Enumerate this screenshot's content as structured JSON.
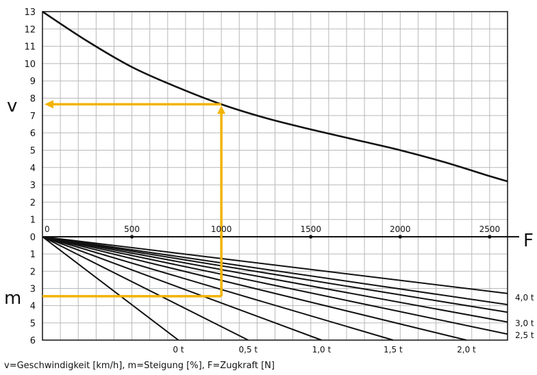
{
  "chart_data": {
    "type": "line",
    "title": "",
    "caption": "v=Geschwindigkeit [km/h], m=Steigung [%], F=Zugkraft [N]",
    "axis_label_v": "v",
    "axis_label_f": "F",
    "axis_label_m": "m",
    "f_range": [
      0,
      2600
    ],
    "v_range": [
      0,
      13
    ],
    "m_range": [
      0,
      6
    ],
    "f_ticks": [
      "0",
      "500",
      "1000",
      "1500",
      "2000",
      "2500"
    ],
    "v_ticks": [
      "0",
      "1",
      "2",
      "3",
      "4",
      "5",
      "6",
      "7",
      "8",
      "9",
      "10",
      "11",
      "12",
      "13"
    ],
    "m_ticks": [
      "0",
      "1",
      "2",
      "3",
      "4",
      "5",
      "6"
    ],
    "grid": true,
    "speed_curve": {
      "F": [
        0,
        250,
        500,
        750,
        1000,
        1250,
        1500,
        1750,
        2000,
        2250,
        2500,
        2600
      ],
      "v": [
        13,
        11.3,
        9.8,
        8.65,
        7.65,
        6.85,
        6.2,
        5.6,
        5.0,
        4.3,
        3.5,
        3.2
      ]
    },
    "load_lines": [
      {
        "F_at_m6": 760
      },
      {
        "F_at_m6": 1150
      },
      {
        "F_at_m6": 1560
      },
      {
        "F_at_m6": 1960
      },
      {
        "F_at_m6": 2370
      },
      {
        "F_at_m6": 2760
      },
      {
        "F_at_m6": 3150
      },
      {
        "F_at_m6": 3560
      },
      {
        "F_at_m6": 3960
      },
      {
        "F_at_m6": 4740
      }
    ],
    "load_labels": [
      {
        "text": "0 t",
        "F": 760,
        "m": 6
      },
      {
        "text": "0,5 t",
        "F": 1150,
        "m": 6
      },
      {
        "text": "1,0 t",
        "F": 1560,
        "m": 6
      },
      {
        "text": "1,5 t",
        "F": 1960,
        "m": 6
      },
      {
        "text": "2,0 t",
        "F": 2370,
        "m": 6
      },
      {
        "text": "2,5 t",
        "F": 2600,
        "m": 5.65
      },
      {
        "text": "3,0 t",
        "F": 2600,
        "m": 4.95
      },
      {
        "text": "4,0 t",
        "F": 2600,
        "m": 3.45
      }
    ],
    "example": {
      "F": 1000,
      "m": 3.45,
      "v": 7.65
    },
    "colors": {
      "curve": "#111111",
      "grid": "#b8b8b8",
      "example": "#f2b300"
    }
  }
}
